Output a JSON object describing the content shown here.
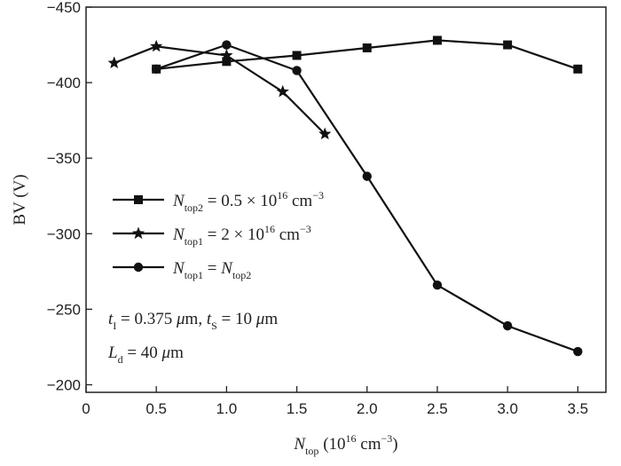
{
  "chart_data": {
    "type": "line",
    "title": "",
    "xlabel": {
      "main": "N",
      "sub": "top",
      "rest": " (10",
      "sup": "16",
      "tail": " cm",
      "sup2": "−3",
      "close": ")"
    },
    "ylabel": "BV (V)",
    "xlim": [
      0,
      3.7
    ],
    "ylim": [
      -195,
      -450
    ],
    "x_ticks": [
      0,
      0.5,
      1.0,
      1.5,
      2.0,
      2.5,
      3.0,
      3.5
    ],
    "x_tick_labels": [
      "0",
      "0.5",
      "1.0",
      "1.5",
      "2.0",
      "2.5",
      "3.0",
      "3.5"
    ],
    "y_ticks": [
      -200,
      -250,
      -300,
      -350,
      -400,
      -450
    ],
    "y_tick_labels": [
      "−200",
      "−250",
      "−300",
      "−350",
      "−400",
      "−450"
    ],
    "grid": false,
    "legend_position": "center-left",
    "series": [
      {
        "marker": "square",
        "legend": {
          "main": "N",
          "sub": "top2",
          "rest": " = 0.5 × 10",
          "sup": "16",
          "tail": " cm",
          "sup2": "−3"
        },
        "x": [
          0.5,
          1.0,
          1.5,
          2.0,
          2.5,
          3.0,
          3.5
        ],
        "y": [
          -409,
          -414,
          -418,
          -423,
          -428,
          -425,
          -409
        ]
      },
      {
        "marker": "star",
        "legend": {
          "main": "N",
          "sub": "top1",
          "rest": " = 2 × 10",
          "sup": "16",
          "tail": " cm",
          "sup2": "−3"
        },
        "x": [
          0.2,
          0.5,
          1.0,
          1.4,
          1.7
        ],
        "y": [
          -413,
          -424,
          -418,
          -394,
          -366
        ]
      },
      {
        "marker": "circle",
        "legend": {
          "main": "N",
          "sub": "top1",
          "rest": " = ",
          "main2": "N",
          "sub2": "top2"
        },
        "x": [
          0.5,
          1.0,
          1.5,
          2.0,
          2.5,
          3.0,
          3.5
        ],
        "y": [
          -409,
          -425,
          -408,
          -338,
          -266,
          -239,
          -222
        ]
      }
    ],
    "annotations": [
      {
        "parts": [
          [
            "t",
            "i"
          ],
          [
            "I",
            "sub"
          ],
          [
            " = 0.375 ",
            "n"
          ],
          [
            "μ",
            "i"
          ],
          [
            "m, ",
            "n"
          ],
          [
            "t",
            "i"
          ],
          [
            "S",
            "sub"
          ],
          [
            " = 10 ",
            "n"
          ],
          [
            "μ",
            "i"
          ],
          [
            "m",
            "n"
          ]
        ]
      },
      {
        "parts": [
          [
            "L",
            "i"
          ],
          [
            "d",
            "sub"
          ],
          [
            " = 40 ",
            "n"
          ],
          [
            "μ",
            "i"
          ],
          [
            "m",
            "n"
          ]
        ]
      }
    ]
  }
}
